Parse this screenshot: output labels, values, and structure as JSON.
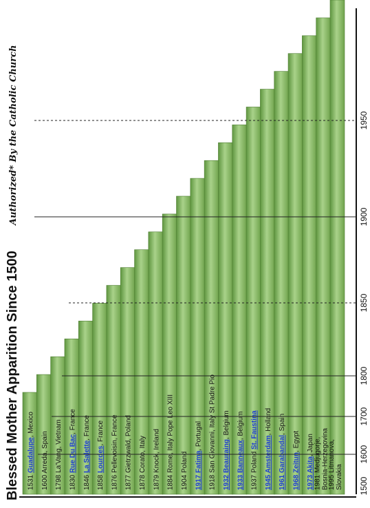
{
  "chart_data": {
    "type": "bar",
    "title": "Blessed Mother Apparition Since 1500",
    "subtitle": "Authorized* By the Catholic Church",
    "xlim": [
      1500,
      1975
    ],
    "x_ticks": [
      "1500",
      "1600",
      "1700",
      "1800",
      "1850",
      "1900",
      "1950"
    ],
    "bar_fill": "#8fbe6a",
    "link_color": "#1f3fd1",
    "bars": [
      {
        "year": "1531",
        "link": "Guadalupe",
        "rest": ", Mexico"
      },
      {
        "year": "1600",
        "link": "",
        "rest": "Arreda, Spain"
      },
      {
        "year": "1798",
        "link": "",
        "rest": "La'Vang, Vietnam"
      },
      {
        "year": "1830",
        "link": "Rue Du Bac",
        "rest": ", France"
      },
      {
        "year": "1846",
        "link": "La Salette",
        "rest": ", France"
      },
      {
        "year": "1858",
        "link": "Lourdes",
        "rest": ", France"
      },
      {
        "year": "1876",
        "link": "",
        "rest": "Pellevoisin, France"
      },
      {
        "year": "1877",
        "link": "",
        "rest": "Gietrzwald, Poland"
      },
      {
        "year": "1878",
        "link": "",
        "rest": "Corato, Italy"
      },
      {
        "year": "1879",
        "link": "",
        "rest": "Knock, Ireland"
      },
      {
        "year": "1884",
        "link": "",
        "rest": "Rome, Italy Pope Leo XIII"
      },
      {
        "year": "1904",
        "link": "",
        "rest": "Poland"
      },
      {
        "year": "",
        "link": "1917 Fatima",
        "rest": ", Portugal"
      },
      {
        "year": "1918",
        "link": "",
        "rest": "San Giovanni, Italy St Padre Pio"
      },
      {
        "year": "",
        "link": "1932 Beauraing",
        "rest": ", Belgium"
      },
      {
        "year": "",
        "link": "1933 Banneaux",
        "rest": ", Belgium"
      },
      {
        "year": "1937",
        "link": "",
        "rest": "Poland ",
        "link2": "St. Faustina"
      },
      {
        "year": "",
        "link": "1945 Amsterdam",
        "rest": ", Holland"
      },
      {
        "year": "",
        "link": "1961 Garabandal",
        "rest": ", Spain"
      },
      {
        "year": "",
        "link": "1968 Zeitun",
        "rest": ", Egypt"
      },
      {
        "year": "",
        "link": "1973 Akita",
        "rest": ", Japan"
      },
      {
        "year": "1981",
        "link": "",
        "rest": "Medjugorje,",
        "line2": "Bosnia-Herzegovina"
      },
      {
        "year": "1995",
        "link": "",
        "rest": "Litmanova,",
        "line2": "Slovakia"
      }
    ]
  }
}
